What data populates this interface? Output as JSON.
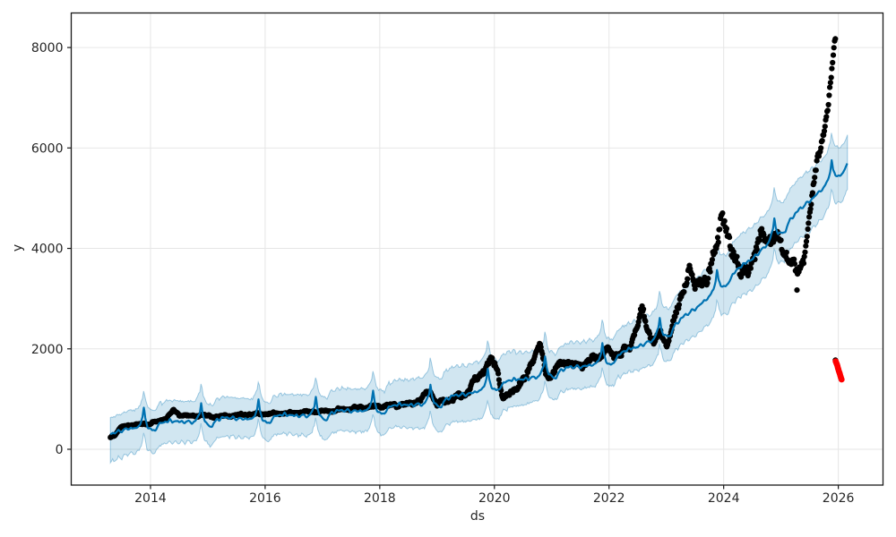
{
  "chart_data": {
    "type": "scatter",
    "subtype": "prophet-forecast-plot",
    "title": "",
    "xlabel": "ds",
    "ylabel": "y",
    "x_ticks": [
      2014,
      2016,
      2018,
      2020,
      2022,
      2024,
      2026
    ],
    "y_ticks": [
      0,
      2000,
      4000,
      6000,
      8000
    ],
    "x_range": [
      2012.617,
      2026.78
    ],
    "y_range": [
      -713,
      8688
    ],
    "grid": true,
    "legend": "none",
    "colors": {
      "line": "#0072B2",
      "band": "#0072B2",
      "band_opacity": 0.18,
      "band_edge_opacity": 0.35,
      "points": "#000000",
      "anomalies": "#ff0000",
      "grid": "#e6e6e6",
      "spine": "#1a1a1a",
      "text": "#262626",
      "background": "#ffffff"
    },
    "spans": {
      "observed": [
        2013.3,
        2025.955
      ],
      "forecast": [
        2013.3,
        2026.16
      ]
    },
    "trend": [
      [
        2013.3,
        280
      ],
      [
        2013.6,
        430
      ],
      [
        2014.0,
        500
      ],
      [
        2014.5,
        560
      ],
      [
        2015.0,
        590
      ],
      [
        2015.5,
        620
      ],
      [
        2016.0,
        650
      ],
      [
        2016.5,
        680
      ],
      [
        2017.0,
        720
      ],
      [
        2017.5,
        770
      ],
      [
        2018.0,
        830
      ],
      [
        2018.5,
        890
      ],
      [
        2019.0,
        970
      ],
      [
        2019.5,
        1100
      ],
      [
        2020.0,
        1300
      ],
      [
        2020.5,
        1400
      ],
      [
        2021.0,
        1550
      ],
      [
        2021.5,
        1650
      ],
      [
        2022.0,
        1800
      ],
      [
        2022.5,
        2050
      ],
      [
        2023.0,
        2350
      ],
      [
        2023.5,
        2800
      ],
      [
        2024.0,
        3350
      ],
      [
        2024.5,
        3800
      ],
      [
        2025.0,
        4400
      ],
      [
        2025.5,
        4950
      ],
      [
        2026.0,
        5550
      ],
      [
        2026.16,
        5700
      ]
    ],
    "seasonality": [
      [
        0.0,
        -90
      ],
      [
        0.03,
        -130
      ],
      [
        0.08,
        -140
      ],
      [
        0.12,
        -60
      ],
      [
        0.16,
        10
      ],
      [
        0.2,
        -20
      ],
      [
        0.25,
        30
      ],
      [
        0.3,
        10
      ],
      [
        0.34,
        45
      ],
      [
        0.38,
        -10
      ],
      [
        0.44,
        25
      ],
      [
        0.5,
        -30
      ],
      [
        0.55,
        5
      ],
      [
        0.6,
        -40
      ],
      [
        0.66,
        -5
      ],
      [
        0.72,
        -50
      ],
      [
        0.78,
        -15
      ],
      [
        0.82,
        40
      ],
      [
        0.86,
        150
      ],
      [
        0.885,
        350
      ],
      [
        0.91,
        120
      ],
      [
        0.95,
        -50
      ],
      [
        1.0,
        -90
      ]
    ],
    "uncertainty_band": [
      [
        2013.3,
        320,
        560
      ],
      [
        2014.0,
        400,
        450
      ],
      [
        2015.0,
        420,
        380
      ],
      [
        2016.0,
        400,
        360
      ],
      [
        2017.0,
        430,
        400
      ],
      [
        2018.0,
        450,
        420
      ],
      [
        2019.0,
        560,
        500
      ],
      [
        2020.0,
        600,
        580
      ],
      [
        2021.0,
        480,
        440
      ],
      [
        2022.0,
        500,
        430
      ],
      [
        2023.0,
        550,
        500
      ],
      [
        2024.0,
        620,
        560
      ],
      [
        2024.5,
        650,
        620
      ],
      [
        2025.0,
        620,
        580
      ],
      [
        2025.5,
        620,
        600
      ],
      [
        2026.16,
        550,
        520
      ]
    ],
    "observed": [
      [
        2013.3,
        250
      ],
      [
        2013.38,
        280
      ],
      [
        2013.45,
        400
      ],
      [
        2013.55,
        470
      ],
      [
        2013.7,
        490
      ],
      [
        2013.85,
        500
      ],
      [
        2014.0,
        520
      ],
      [
        2014.15,
        560
      ],
      [
        2014.3,
        640
      ],
      [
        2014.4,
        780
      ],
      [
        2014.5,
        690
      ],
      [
        2014.7,
        660
      ],
      [
        2014.9,
        680
      ],
      [
        2015.1,
        650
      ],
      [
        2015.3,
        660
      ],
      [
        2015.6,
        690
      ],
      [
        2015.9,
        700
      ],
      [
        2016.2,
        710
      ],
      [
        2016.5,
        730
      ],
      [
        2016.8,
        750
      ],
      [
        2017.1,
        760
      ],
      [
        2017.4,
        800
      ],
      [
        2017.6,
        830
      ],
      [
        2017.9,
        850
      ],
      [
        2018.2,
        870
      ],
      [
        2018.5,
        900
      ],
      [
        2018.7,
        980
      ],
      [
        2018.88,
        1170
      ],
      [
        2019.0,
        890
      ],
      [
        2019.1,
        950
      ],
      [
        2019.3,
        1020
      ],
      [
        2019.5,
        1100
      ],
      [
        2019.65,
        1350
      ],
      [
        2019.8,
        1550
      ],
      [
        2019.95,
        1780
      ],
      [
        2020.05,
        1600
      ],
      [
        2020.15,
        1020
      ],
      [
        2020.25,
        1080
      ],
      [
        2020.4,
        1250
      ],
      [
        2020.55,
        1420
      ],
      [
        2020.7,
        1900
      ],
      [
        2020.8,
        2080
      ],
      [
        2020.9,
        1500
      ],
      [
        2021.0,
        1470
      ],
      [
        2021.1,
        1650
      ],
      [
        2021.25,
        1750
      ],
      [
        2021.4,
        1650
      ],
      [
        2021.55,
        1700
      ],
      [
        2021.7,
        1800
      ],
      [
        2021.85,
        1850
      ],
      [
        2021.95,
        2000
      ],
      [
        2022.05,
        1870
      ],
      [
        2022.2,
        1900
      ],
      [
        2022.35,
        2000
      ],
      [
        2022.5,
        2500
      ],
      [
        2022.58,
        2780
      ],
      [
        2022.7,
        2300
      ],
      [
        2022.8,
        2150
      ],
      [
        2022.9,
        2300
      ],
      [
        2023.0,
        2080
      ],
      [
        2023.1,
        2400
      ],
      [
        2023.25,
        3000
      ],
      [
        2023.4,
        3600
      ],
      [
        2023.5,
        3200
      ],
      [
        2023.6,
        3450
      ],
      [
        2023.7,
        3250
      ],
      [
        2023.8,
        3700
      ],
      [
        2023.9,
        4300
      ],
      [
        2023.97,
        4650
      ],
      [
        2024.1,
        4100
      ],
      [
        2024.2,
        3900
      ],
      [
        2024.3,
        3450
      ],
      [
        2024.4,
        3550
      ],
      [
        2024.55,
        3900
      ],
      [
        2024.65,
        4200
      ],
      [
        2024.75,
        4300
      ],
      [
        2024.85,
        4150
      ],
      [
        2024.95,
        4250
      ],
      [
        2025.05,
        4000
      ],
      [
        2025.15,
        3750
      ],
      [
        2025.28,
        3550
      ],
      [
        2025.4,
        3800
      ],
      [
        2025.5,
        4600
      ],
      [
        2025.58,
        5400
      ],
      [
        2025.65,
        5900
      ],
      [
        2025.72,
        6150
      ],
      [
        2025.78,
        6450
      ],
      [
        2025.83,
        6900
      ],
      [
        2025.88,
        7500
      ],
      [
        2025.93,
        8100
      ],
      [
        2025.955,
        8280
      ]
    ],
    "observed_scatter_spread": [
      [
        2013.3,
        20
      ],
      [
        2014.0,
        28
      ],
      [
        2015.0,
        28
      ],
      [
        2016.0,
        28
      ],
      [
        2017.0,
        32
      ],
      [
        2018.0,
        40
      ],
      [
        2019.0,
        55
      ],
      [
        2019.8,
        85
      ],
      [
        2020.3,
        70
      ],
      [
        2021.0,
        80
      ],
      [
        2022.0,
        80
      ],
      [
        2022.6,
        110
      ],
      [
        2023.0,
        90
      ],
      [
        2023.5,
        150
      ],
      [
        2024.0,
        210
      ],
      [
        2024.5,
        200
      ],
      [
        2025.0,
        170
      ],
      [
        2025.4,
        140
      ],
      [
        2025.7,
        120
      ],
      [
        2025.95,
        70
      ]
    ],
    "black_outliers": [
      [
        2025.28,
        3170
      ],
      [
        2025.95,
        1775
      ]
    ],
    "red_anomalies": [
      [
        2025.955,
        1750
      ],
      [
        2025.962,
        1730
      ],
      [
        2025.97,
        1705
      ],
      [
        2025.978,
        1685
      ],
      [
        2025.986,
        1655
      ],
      [
        2025.994,
        1620
      ],
      [
        2026.002,
        1590
      ],
      [
        2026.01,
        1560
      ],
      [
        2026.018,
        1530
      ],
      [
        2026.026,
        1500
      ],
      [
        2026.034,
        1470
      ],
      [
        2026.042,
        1440
      ],
      [
        2026.05,
        1410
      ],
      [
        2026.058,
        1390
      ]
    ]
  }
}
